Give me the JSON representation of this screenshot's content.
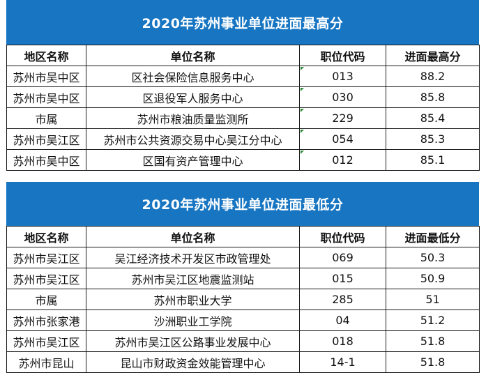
{
  "tables": [
    {
      "title": "2020年苏州事业单位进面最高分",
      "headers": [
        "地区名称",
        "单位名称",
        "职位代码",
        "进面最高分"
      ],
      "rows": [
        [
          "苏州市吴中区",
          "区社会保险信息服务中心",
          "013",
          "88.2"
        ],
        [
          "苏州市吴中区",
          "区退役军人服务中心",
          "030",
          "85.8"
        ],
        [
          "市属",
          "苏州市粮油质量监测所",
          "229",
          "85.4"
        ],
        [
          "苏州市吴江区",
          "苏州市公共资源交易中心吴江分中心",
          "054",
          "85.3"
        ],
        [
          "苏州市吴中区",
          "区国有资产管理中心",
          "012",
          "85.1"
        ]
      ]
    },
    {
      "title": "2020年苏州事业单位进面最低分",
      "headers": [
        "地区名称",
        "单位名称",
        "职位代码",
        "进面最低分"
      ],
      "rows": [
        [
          "苏州市吴江区",
          "吴江经济技术开发区市政管理处",
          "069",
          "50.3"
        ],
        [
          "苏州市吴江区",
          "苏州市吴江区地震监测站",
          "015",
          "50.9"
        ],
        [
          "市属",
          "苏州市职业大学",
          "285",
          "51"
        ],
        [
          "苏州市张家港",
          "沙洲职业工学院",
          "04",
          "51.2"
        ],
        [
          "苏州市吴江区",
          "苏州市吴江区公路事业发展中心",
          "018",
          "51.8"
        ],
        [
          "苏州市昆山",
          "昆山市财政资金效能管理中心",
          "14-1",
          "51.8"
        ]
      ]
    }
  ],
  "colors": {
    "title_bg": "#1775c2",
    "title_text": "#ffffff",
    "border": "#1a1a1a",
    "marker": "#2e8b3a"
  }
}
